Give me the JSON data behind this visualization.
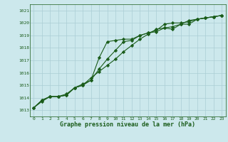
{
  "xlabel": "Graphe pression niveau de la mer (hPa)",
  "ylim": [
    1012.5,
    1021.5
  ],
  "xlim": [
    -0.5,
    23.5
  ],
  "yticks": [
    1013,
    1014,
    1015,
    1016,
    1017,
    1018,
    1019,
    1020,
    1021
  ],
  "xticks": [
    0,
    1,
    2,
    3,
    4,
    5,
    6,
    7,
    8,
    9,
    10,
    11,
    12,
    13,
    14,
    15,
    16,
    17,
    18,
    19,
    20,
    21,
    22,
    23
  ],
  "bg_color": "#cce8ec",
  "grid_color": "#aacdd4",
  "line_color": "#1a5c1a",
  "series1": [
    1013.2,
    1013.7,
    1014.1,
    1014.1,
    1014.2,
    1014.8,
    1015.0,
    1015.4,
    1017.2,
    1018.5,
    1018.6,
    1018.7,
    1018.7,
    1019.0,
    1019.2,
    1019.3,
    1019.6,
    1019.5,
    1019.9,
    1019.9,
    1020.3,
    1020.4,
    1020.5,
    1020.6
  ],
  "series2": [
    1013.2,
    1013.8,
    1014.1,
    1014.1,
    1014.2,
    1014.8,
    1015.0,
    1015.6,
    1016.1,
    1016.6,
    1017.1,
    1017.7,
    1018.2,
    1018.7,
    1019.1,
    1019.5,
    1019.6,
    1019.7,
    1019.9,
    1020.2,
    1020.3,
    1020.4,
    1020.5,
    1020.6
  ],
  "series3": [
    1013.2,
    1013.8,
    1014.1,
    1014.1,
    1014.3,
    1014.8,
    1015.1,
    1015.4,
    1016.3,
    1017.1,
    1017.8,
    1018.5,
    1018.6,
    1019.0,
    1019.2,
    1019.4,
    1019.9,
    1020.0,
    1020.0,
    1020.1,
    1020.3,
    1020.4,
    1020.5,
    1020.6
  ],
  "marker": "D",
  "marker_size": 2.2,
  "line_width": 0.8
}
